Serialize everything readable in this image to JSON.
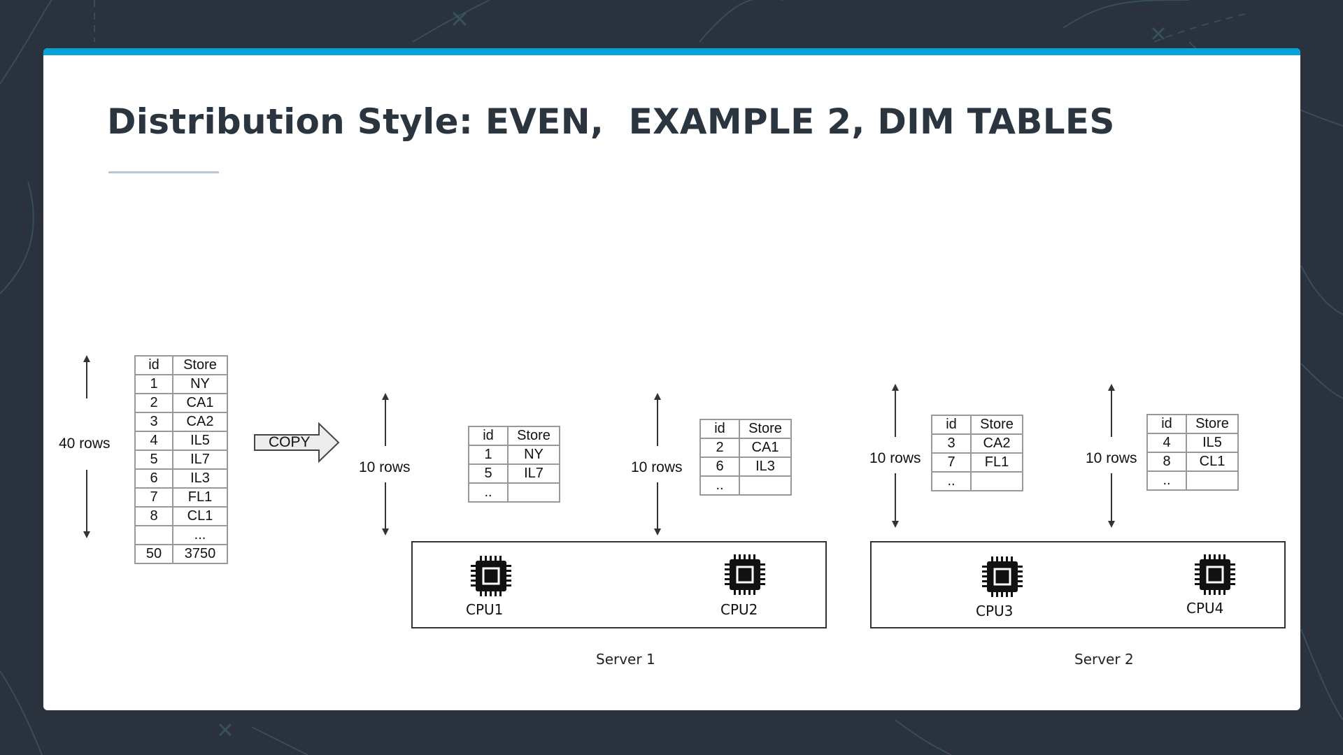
{
  "slide": {
    "title": "Distribution Style: EVEN,  EXAMPLE 2, DIM TABLES",
    "accent_color": "#06a3d9",
    "background_color": "#2a323d"
  },
  "source": {
    "row_count_label": "40 rows",
    "headers": [
      "id",
      "Store"
    ],
    "rows": [
      [
        "1",
        "NY"
      ],
      [
        "2",
        "CA1"
      ],
      [
        "3",
        "CA2"
      ],
      [
        "4",
        "IL5"
      ],
      [
        "5",
        "IL7"
      ],
      [
        "6",
        "IL3"
      ],
      [
        "7",
        "FL1"
      ],
      [
        "8",
        "CL1"
      ],
      [
        "",
        "..."
      ],
      [
        "50",
        "3750"
      ]
    ]
  },
  "copy_label": "COPY",
  "slices": [
    {
      "row_count_label": "10 rows",
      "headers": [
        "id",
        "Store"
      ],
      "rows": [
        [
          "1",
          "NY"
        ],
        [
          "5",
          "IL7"
        ],
        [
          "..",
          ""
        ]
      ]
    },
    {
      "row_count_label": "10 rows",
      "headers": [
        "id",
        "Store"
      ],
      "rows": [
        [
          "2",
          "CA1"
        ],
        [
          "6",
          "IL3"
        ],
        [
          "..",
          ""
        ]
      ]
    },
    {
      "row_count_label": "10 rows",
      "headers": [
        "id",
        "Store"
      ],
      "rows": [
        [
          "3",
          "CA2"
        ],
        [
          "7",
          "FL1"
        ],
        [
          "..",
          ""
        ]
      ]
    },
    {
      "row_count_label": "10 rows",
      "headers": [
        "id",
        "Store"
      ],
      "rows": [
        [
          "4",
          "IL5"
        ],
        [
          "8",
          "CL1"
        ],
        [
          "..",
          ""
        ]
      ]
    }
  ],
  "servers": [
    {
      "label": "Server 1",
      "cpus": [
        {
          "label": "CPU1",
          "icon": "cpu-chip-icon"
        },
        {
          "label": "CPU2",
          "icon": "cpu-chip-icon"
        }
      ]
    },
    {
      "label": "Server 2",
      "cpus": [
        {
          "label": "CPU3",
          "icon": "cpu-chip-icon"
        },
        {
          "label": "CPU4",
          "icon": "cpu-chip-icon"
        }
      ]
    }
  ]
}
